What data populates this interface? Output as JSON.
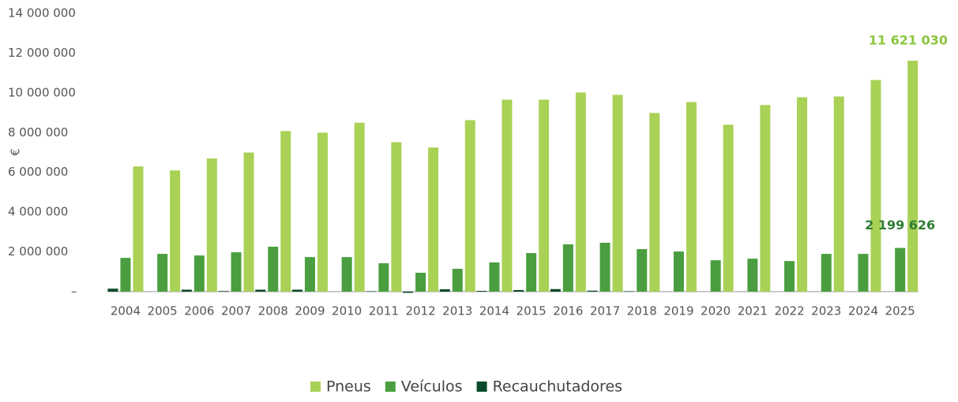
{
  "chart_data": {
    "type": "bar",
    "categories": [
      "2004",
      "2005",
      "2006",
      "2007",
      "2008",
      "2009",
      "2010",
      "2011",
      "2012",
      "2013",
      "2014",
      "2015",
      "2016",
      "2017",
      "2018",
      "2019",
      "2020",
      "2021",
      "2022",
      "2023",
      "2024",
      "2025"
    ],
    "series": [
      {
        "name": "Pneus",
        "color": "#a9d156",
        "values": [
          6300000,
          6100000,
          6700000,
          7000000,
          8080000,
          8000000,
          8500000,
          7520000,
          7250000,
          8630000,
          9660000,
          9660000,
          10020000,
          9900000,
          8990000,
          9540000,
          8400000,
          9390000,
          9780000,
          9820000,
          10650000,
          11621030
        ],
        "value_labels": [
          null,
          null,
          null,
          null,
          null,
          null,
          null,
          null,
          null,
          null,
          null,
          null,
          null,
          null,
          null,
          null,
          null,
          null,
          null,
          null,
          null,
          "11 621 030"
        ]
      },
      {
        "name": "Veículos",
        "color": "#4a9e3f",
        "values": [
          1700000,
          1900000,
          1820000,
          1980000,
          2260000,
          1740000,
          1740000,
          1430000,
          950000,
          1150000,
          1470000,
          1940000,
          2380000,
          2460000,
          2140000,
          2020000,
          1580000,
          1660000,
          1540000,
          1900000,
          1900000,
          2199626
        ],
        "value_labels": [
          null,
          null,
          null,
          null,
          null,
          null,
          null,
          null,
          null,
          null,
          null,
          null,
          null,
          null,
          null,
          null,
          null,
          null,
          null,
          null,
          null,
          "2 199 626"
        ]
      },
      {
        "name": "Recauchutadores",
        "color": "#0b4a2a",
        "values": [
          150000,
          0,
          100000,
          30000,
          100000,
          100000,
          0,
          20000,
          -60000,
          120000,
          40000,
          80000,
          130000,
          50000,
          20000,
          0,
          0,
          0,
          0,
          0,
          0,
          0
        ]
      }
    ],
    "ylabel": "€",
    "ylim": [
      0,
      14000000
    ],
    "yticks": [
      {
        "value": 0,
        "label": "–"
      },
      {
        "value": 2000000,
        "label": "2 000 000"
      },
      {
        "value": 4000000,
        "label": "4 000 000"
      },
      {
        "value": 6000000,
        "label": "6 000 000"
      },
      {
        "value": 8000000,
        "label": "8 000 000"
      },
      {
        "value": 10000000,
        "label": "10 000 000"
      },
      {
        "value": 12000000,
        "label": "12 000 000"
      },
      {
        "value": 14000000,
        "label": "14 000 000"
      }
    ],
    "label_colors": [
      "#8cc63f",
      "#2e7d32"
    ]
  }
}
